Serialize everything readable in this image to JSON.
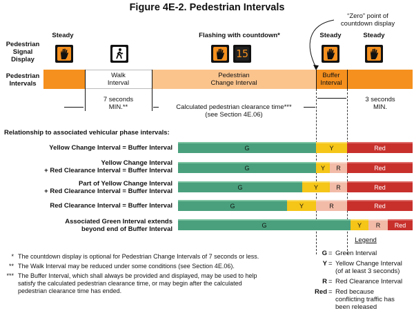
{
  "title": "Figure 4E-2.  Pedestrian Intervals",
  "zero_point": "“Zero” point of\ncountdown display",
  "signal_display_label": "Pedestrian\nSignal\nDisplay",
  "intervals_label": "Pedestrian\nIntervals",
  "state_labels": {
    "steady1": "Steady",
    "flashing": "Flashing with countdown*",
    "steady2": "Steady",
    "steady3": "Steady"
  },
  "countdown_value": "15",
  "timeline": {
    "walk": "Walk\nInterval",
    "change": "Pedestrian\nChange Interval",
    "buffer": "Buffer\nInterval"
  },
  "dims": {
    "walk_min": "7 seconds\nMIN.**",
    "clearance": "Calculated pedestrian clearance time***\n(see Section 4E.06)",
    "buffer_min": "3 seconds\nMIN."
  },
  "relationship_heading": "Relationship to associated vehicular phase intervals:",
  "rows": [
    {
      "label": "Yellow Change Interval = Buffer Interval",
      "segments": [
        "G",
        "Y",
        "Red"
      ]
    },
    {
      "label": "Yellow Change Interval\n+ Red Clearance Interval = Buffer Interval",
      "segments": [
        "G",
        "Y",
        "R",
        "Red"
      ]
    },
    {
      "label": "Part of Yellow Change Interval\n+ Red Clearance Interval = Buffer Interval",
      "segments": [
        "G",
        "Y",
        "R",
        "Red"
      ]
    },
    {
      "label": "Red Clearance Interval = Buffer Interval",
      "segments": [
        "G",
        "Y",
        "R",
        "Red"
      ]
    },
    {
      "label": "Associated Green Interval extends\nbeyond end of Buffer Interval",
      "segments": [
        "G",
        "Y",
        "R",
        "Red"
      ]
    }
  ],
  "footnotes": [
    {
      "mark": "*",
      "text": "The countdown display is optional for Pedestrian Change Intervals of 7 seconds or less."
    },
    {
      "mark": "**",
      "text": "The Walk Interval may be reduced under some conditions (see Section 4E.06)."
    },
    {
      "mark": "***",
      "text": "The Buffer Interval, which shall always be provided and displayed, may be used to help\nsatisfy the calculated pedestrian clearance time, or may begin after the calculated\npedestrian clearance time has ended."
    }
  ],
  "legend": {
    "title": "Legend",
    "items": [
      {
        "key": "G",
        "text": "Green Interval"
      },
      {
        "key": "Y",
        "text": "Yellow Change Interval\n(of at least 3 seconds)"
      },
      {
        "key": "R",
        "text": "Red Clearance Interval"
      },
      {
        "key": "Red",
        "text": "Red because\nconflicting traffic has\nbeen released"
      }
    ]
  },
  "colors": {
    "dont_walk_orange": "#f5901e",
    "change_interval": "#fbc48d",
    "green": "#4aa07d",
    "yellow": "#f5c518",
    "red_clearance": "#f2bba8",
    "red": "#c8302c"
  },
  "icons": [
    "hand-icon",
    "walking-person-icon",
    "countdown-display"
  ]
}
